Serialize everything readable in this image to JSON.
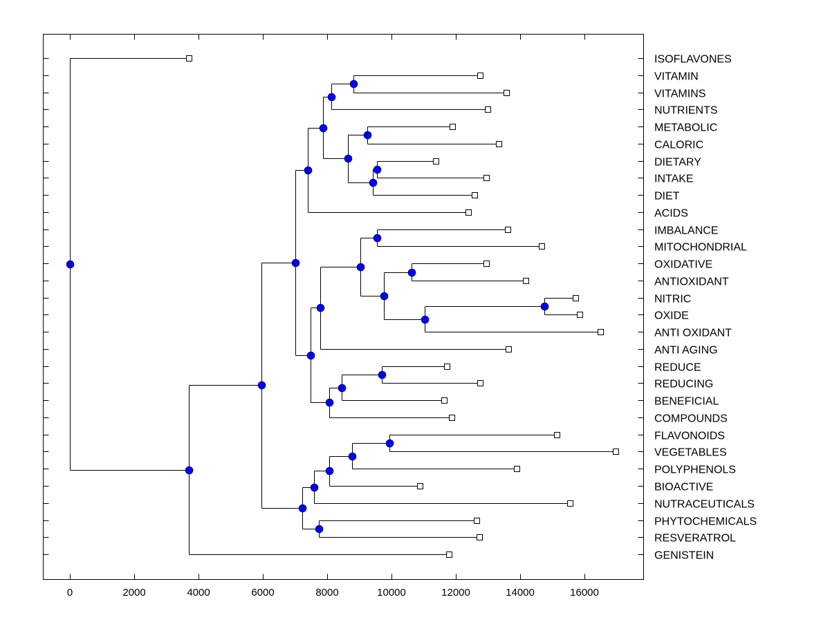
{
  "chart_data": {
    "type": "dendrogram",
    "title": "",
    "xlabel": "",
    "ylabel": "",
    "xlim": [
      -800,
      18700
    ],
    "xticks": [
      0,
      2000,
      4000,
      6000,
      8000,
      10000,
      12000,
      14000,
      16000
    ],
    "xtick_labels": [
      "0",
      "2000",
      "4000",
      "6000",
      "8000",
      "10000",
      "12000",
      "14000",
      "16000"
    ],
    "grid": false,
    "colors": {
      "node": "#0000ff",
      "node_border": "#000080",
      "leaf_fill": "#ffffff",
      "line": "#000000"
    },
    "leaves": [
      {
        "id": "ISOFLAVONES",
        "label": "ISOFLAVONES",
        "x": 3700
      },
      {
        "id": "VITAMIN",
        "label": "VITAMIN",
        "x": 12750
      },
      {
        "id": "VITAMINS",
        "label": "VITAMINS",
        "x": 13570
      },
      {
        "id": "NUTRIENTS",
        "label": "NUTRIENTS",
        "x": 12990
      },
      {
        "id": "METABOLIC",
        "label": "METABOLIC",
        "x": 11890
      },
      {
        "id": "CALORIC",
        "label": "CALORIC",
        "x": 13330
      },
      {
        "id": "DIETARY",
        "label": "DIETARY",
        "x": 11380
      },
      {
        "id": "INTAKE",
        "label": "INTAKE",
        "x": 12950
      },
      {
        "id": "DIET",
        "label": "DIET",
        "x": 12580
      },
      {
        "id": "ACIDS",
        "label": "ACIDS",
        "x": 12390
      },
      {
        "id": "IMBALANCE",
        "label": "IMBALANCE",
        "x": 13610
      },
      {
        "id": "MITOCHONDRIAL",
        "label": "MITOCHONDRIAL",
        "x": 14670
      },
      {
        "id": "OXIDATIVE",
        "label": "OXIDATIVE",
        "x": 12950
      },
      {
        "id": "ANTIOXIDANT",
        "label": "ANTIOXIDANT",
        "x": 14170
      },
      {
        "id": "NITRIC",
        "label": "NITRIC",
        "x": 15720
      },
      {
        "id": "OXIDE",
        "label": "OXIDE",
        "x": 15850
      },
      {
        "id": "ANTI_OXIDANT",
        "label": "ANTI OXIDANT",
        "x": 16490
      },
      {
        "id": "ANTI_AGING",
        "label": "ANTI AGING",
        "x": 13630
      },
      {
        "id": "REDUCE",
        "label": "REDUCE",
        "x": 11720
      },
      {
        "id": "REDUCING",
        "label": "REDUCING",
        "x": 12750
      },
      {
        "id": "BENEFICIAL",
        "label": "BENEFICIAL",
        "x": 11630
      },
      {
        "id": "COMPOUNDS",
        "label": "COMPOUNDS",
        "x": 11870
      },
      {
        "id": "FLAVONOIDS",
        "label": "FLAVONOIDS",
        "x": 15140
      },
      {
        "id": "VEGETABLES",
        "label": "VEGETABLES",
        "x": 16970
      },
      {
        "id": "POLYPHENOLS",
        "label": "POLYPHENOLS",
        "x": 13890
      },
      {
        "id": "BIOACTIVE",
        "label": "BIOACTIVE",
        "x": 10880
      },
      {
        "id": "NUTRACEUTICALS",
        "label": "NUTRACEUTICALS",
        "x": 15550
      },
      {
        "id": "PHYTOCHEMICALS",
        "label": "PHYTOCHEMICALS",
        "x": 12650
      },
      {
        "id": "RESVERATROL",
        "label": "RESVERATROL",
        "x": 12730
      },
      {
        "id": "GENISTEIN",
        "label": "GENISTEIN",
        "x": 11780
      }
    ],
    "nodes": [
      {
        "id": "n_vv",
        "x": 8820,
        "children": [
          "VITAMIN",
          "VITAMINS"
        ]
      },
      {
        "id": "n_vvn",
        "x": 8130,
        "children": [
          "n_vv",
          "NUTRIENTS"
        ]
      },
      {
        "id": "n_mc",
        "x": 9250,
        "children": [
          "METABOLIC",
          "CALORIC"
        ]
      },
      {
        "id": "n_di",
        "x": 9550,
        "children": [
          "DIETARY",
          "INTAKE"
        ]
      },
      {
        "id": "n_did",
        "x": 9420,
        "children": [
          "n_di",
          "DIET"
        ]
      },
      {
        "id": "n_mcd",
        "x": 8650,
        "children": [
          "n_mc",
          "n_did"
        ]
      },
      {
        "id": "n_top1",
        "x": 7870,
        "children": [
          "n_vvn",
          "n_mcd"
        ]
      },
      {
        "id": "n_top2",
        "x": 7400,
        "children": [
          "n_top1",
          "ACIDS"
        ]
      },
      {
        "id": "n_im",
        "x": 9550,
        "children": [
          "IMBALANCE",
          "MITOCHONDRIAL"
        ]
      },
      {
        "id": "n_oa",
        "x": 10620,
        "children": [
          "OXIDATIVE",
          "ANTIOXIDANT"
        ]
      },
      {
        "id": "n_no",
        "x": 14750,
        "children": [
          "NITRIC",
          "OXIDE"
        ]
      },
      {
        "id": "n_noa",
        "x": 11030,
        "children": [
          "n_no",
          "ANTI_OXIDANT"
        ]
      },
      {
        "id": "n_oano",
        "x": 9760,
        "children": [
          "n_oa",
          "n_noa"
        ]
      },
      {
        "id": "n_imox",
        "x": 9030,
        "children": [
          "n_im",
          "n_oano"
        ]
      },
      {
        "id": "n_ag",
        "x": 7780,
        "children": [
          "n_imox",
          "ANTI_AGING"
        ]
      },
      {
        "id": "n_rr",
        "x": 9700,
        "children": [
          "REDUCE",
          "REDUCING"
        ]
      },
      {
        "id": "n_rrb",
        "x": 8450,
        "children": [
          "n_rr",
          "BENEFICIAL"
        ]
      },
      {
        "id": "n_rbc",
        "x": 8060,
        "children": [
          "n_rrb",
          "COMPOUNDS"
        ]
      },
      {
        "id": "n_mid",
        "x": 7480,
        "children": [
          "n_ag",
          "n_rbc"
        ]
      },
      {
        "id": "n_big",
        "x": 7010,
        "children": [
          "n_top2",
          "n_mid"
        ]
      },
      {
        "id": "n_fv",
        "x": 9940,
        "children": [
          "FLAVONOIDS",
          "VEGETABLES"
        ]
      },
      {
        "id": "n_fvp",
        "x": 8770,
        "children": [
          "n_fv",
          "POLYPHENOLS"
        ]
      },
      {
        "id": "n_fvpb",
        "x": 8060,
        "children": [
          "n_fvp",
          "BIOACTIVE"
        ]
      },
      {
        "id": "n_fvpbn",
        "x": 7590,
        "children": [
          "n_fvpb",
          "NUTRACEUTICALS"
        ]
      },
      {
        "id": "n_pr",
        "x": 7740,
        "children": [
          "PHYTOCHEMICALS",
          "RESVERATROL"
        ]
      },
      {
        "id": "n_low",
        "x": 7230,
        "children": [
          "n_fvpbn",
          "n_pr"
        ]
      },
      {
        "id": "n_mid2",
        "x": 5960,
        "children": [
          "n_big",
          "n_low"
        ]
      },
      {
        "id": "n_g",
        "x": 3700,
        "children": [
          "n_mid2",
          "GENISTEIN"
        ]
      },
      {
        "id": "root",
        "x": 0,
        "children": [
          "ISOFLAVONES",
          "n_g"
        ]
      }
    ]
  }
}
